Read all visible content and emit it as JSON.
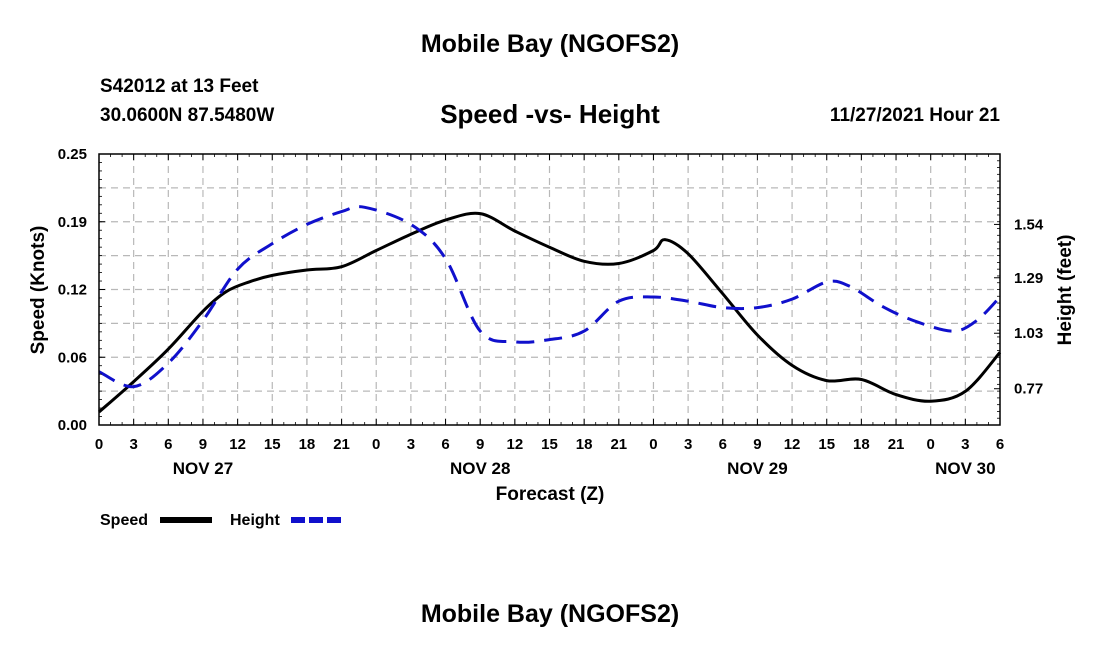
{
  "page": {
    "top_title": "Mobile Bay (NGOFS2)",
    "bottom_title": "Mobile Bay (NGOFS2)",
    "station_line1": "S42012 at 13 Feet",
    "station_line2": "30.0600N  87.5480W",
    "subtitle": "Speed -vs- Height",
    "date_label": "11/27/2021 Hour 21"
  },
  "legend": {
    "speed_label": "Speed",
    "height_label": "Height"
  },
  "colors": {
    "speed": "#000000",
    "height": "#1010cc",
    "grid": "#b8b8b8"
  },
  "chart_data": {
    "type": "line",
    "title": "Speed -vs- Height",
    "xlabel": "Forecast (Z)",
    "ylabel": "Speed (Knots)",
    "y2label": "Height (feet)",
    "x_range_hours": [
      0,
      78
    ],
    "ylim": [
      0,
      0.25
    ],
    "y_ticks": [
      "0.00",
      "0.06",
      "0.12",
      "0.19",
      "0.25"
    ],
    "y2lim": [
      0.6,
      1.87
    ],
    "y2_ticks": [
      {
        "value": 0.77,
        "label": "0.77"
      },
      {
        "value": 1.03,
        "label": "1.03"
      },
      {
        "value": 1.29,
        "label": "1.29"
      },
      {
        "value": 1.54,
        "label": "1.54"
      }
    ],
    "x_ticks": [
      "0",
      "3",
      "6",
      "9",
      "12",
      "15",
      "18",
      "21",
      "0",
      "3",
      "6",
      "9",
      "12",
      "15",
      "18",
      "21",
      "0",
      "3",
      "6",
      "9",
      "12",
      "15",
      "18",
      "21",
      "0",
      "3",
      "6"
    ],
    "day_labels": [
      {
        "hour": 9,
        "label": "NOV 27"
      },
      {
        "hour": 33,
        "label": "NOV 28"
      },
      {
        "hour": 57,
        "label": "NOV 29"
      },
      {
        "hour": 75,
        "label": "NOV 30"
      }
    ],
    "grid": true,
    "series": [
      {
        "name": "Speed",
        "axis": "left",
        "style": "solid",
        "x": [
          0,
          3,
          6,
          9,
          11,
          13,
          15,
          18,
          21,
          24,
          27,
          30,
          33,
          36,
          39,
          42,
          45,
          48,
          49,
          51,
          54,
          57,
          60,
          63,
          66,
          69,
          72,
          75,
          78
        ],
        "values": [
          0.012,
          0.04,
          0.07,
          0.105,
          0.123,
          0.132,
          0.138,
          0.143,
          0.146,
          0.161,
          0.176,
          0.189,
          0.195,
          0.179,
          0.164,
          0.151,
          0.149,
          0.161,
          0.171,
          0.158,
          0.121,
          0.083,
          0.055,
          0.041,
          0.042,
          0.028,
          0.022,
          0.031,
          0.067
        ]
      },
      {
        "name": "Height",
        "axis": "right",
        "style": "dashed",
        "x": [
          0,
          3,
          6,
          9,
          12,
          15,
          18,
          21,
          23,
          27,
          30,
          33,
          36,
          39,
          42,
          45,
          48,
          51,
          54,
          57,
          60,
          63,
          65,
          68,
          71,
          74,
          76,
          78
        ],
        "values": [
          0.85,
          0.78,
          0.89,
          1.09,
          1.33,
          1.45,
          1.54,
          1.6,
          1.62,
          1.54,
          1.38,
          1.04,
          0.99,
          1.0,
          1.04,
          1.18,
          1.2,
          1.18,
          1.15,
          1.15,
          1.19,
          1.27,
          1.25,
          1.15,
          1.08,
          1.04,
          1.09,
          1.2
        ]
      }
    ]
  }
}
